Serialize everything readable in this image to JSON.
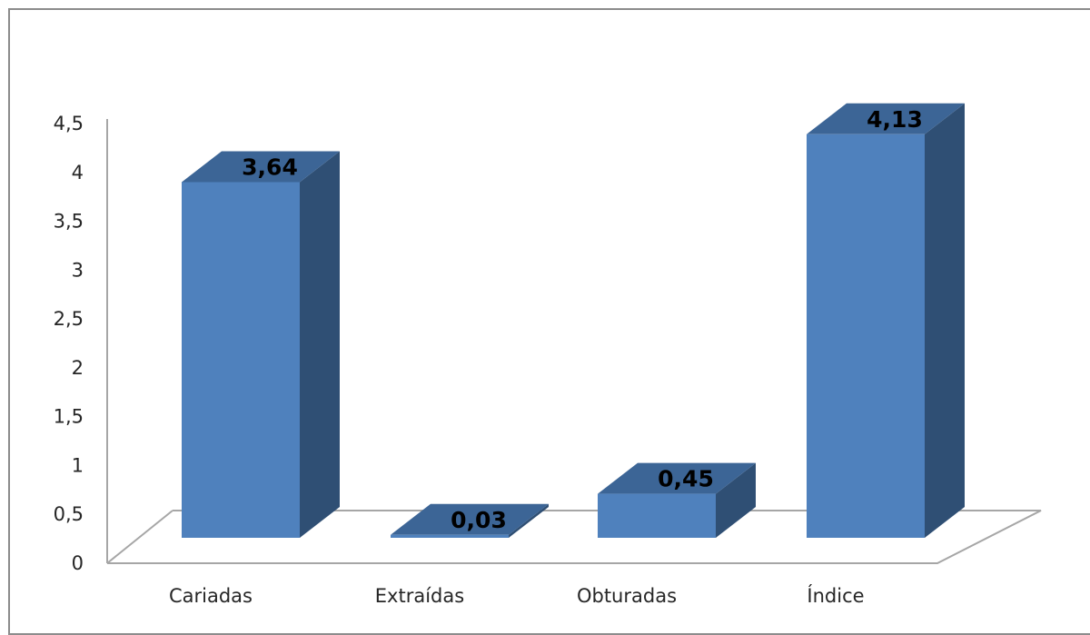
{
  "chart_data": {
    "type": "bar",
    "style": "3d-column",
    "categories": [
      "Cariadas",
      "Extraídas",
      "Obturadas",
      "Índice"
    ],
    "values": [
      3.64,
      0.03,
      0.45,
      4.13
    ],
    "data_labels": [
      "3,64",
      "0,03",
      "0,45",
      "4,13"
    ],
    "title": "",
    "xlabel": "",
    "ylabel": "",
    "ylim": [
      0,
      4.5
    ],
    "yticks": [
      0,
      0.5,
      1,
      1.5,
      2,
      2.5,
      3,
      3.5,
      4,
      4.5
    ],
    "ytick_labels": [
      "0",
      "0,5",
      "1",
      "1,5",
      "2",
      "2,5",
      "3",
      "3,5",
      "4",
      "4,5"
    ],
    "grid": false,
    "legend": "none",
    "colors": {
      "bar_front": "#4F81BD",
      "bar_side": "#2F4F74",
      "bar_top": "#3C6596",
      "axis": "#A6A6A6",
      "frame": "#8C8C8C"
    }
  }
}
